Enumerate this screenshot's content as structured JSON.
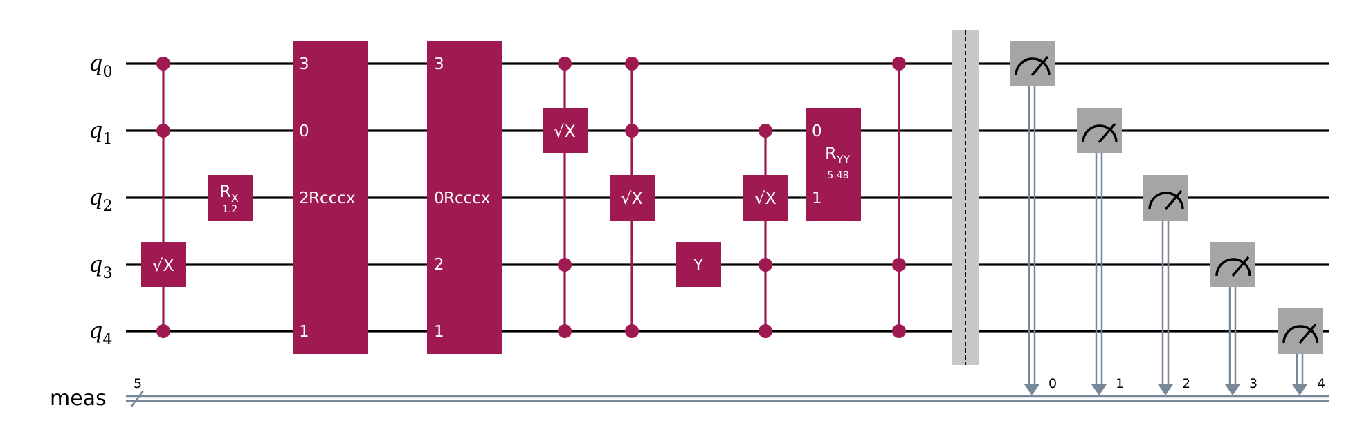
{
  "qubits": [
    {
      "name": "q",
      "index": "0"
    },
    {
      "name": "q",
      "index": "1"
    },
    {
      "name": "q",
      "index": "2"
    },
    {
      "name": "q",
      "index": "3"
    },
    {
      "name": "q",
      "index": "4"
    }
  ],
  "creg": {
    "label": "meas",
    "width": "5"
  },
  "gates": {
    "sx_label": "√X",
    "rx_label": "R",
    "rx_sub": "X",
    "rx_param": "1.2",
    "rcccx_a": {
      "name": "Rcccx",
      "pins": [
        "3",
        "0",
        "2",
        "",
        "1"
      ]
    },
    "rcccx_b": {
      "name": "Rcccx",
      "pins": [
        "3",
        "",
        "0",
        "2",
        "1"
      ]
    },
    "y_label": "Y",
    "ryy_label": "R",
    "ryy_sub": "YY",
    "ryy_param": "5.48",
    "ryy_pins": [
      "0",
      "1"
    ]
  },
  "meas_bits": [
    "0",
    "1",
    "2",
    "3",
    "4"
  ],
  "colors": {
    "gate": "#9e1a50",
    "measure": "#a5a5a5",
    "classical": "#778899",
    "barrier": "#c8c8c8"
  }
}
